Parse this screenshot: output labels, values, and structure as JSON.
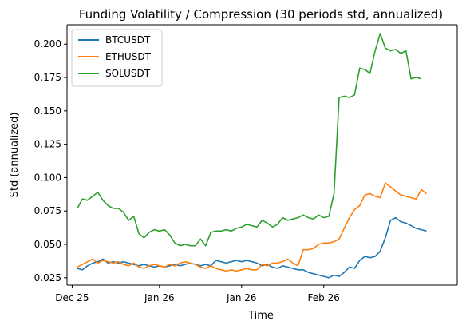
{
  "chart_data": {
    "type": "line",
    "title": "Funding Volatility / Compression (30 periods std, annualized)",
    "xlabel": "Time",
    "ylabel": "Std (annualized)",
    "xlim": [
      "2025-12-24",
      "2026-03-10"
    ],
    "ylim": [
      0.0195,
      0.2145
    ],
    "x_ticks": [
      {
        "date": "2025-12-25",
        "label": "Dec 25"
      },
      {
        "date": "2026-01-11",
        "label": "Jan 26"
      },
      {
        "date": "2026-01-27",
        "label": "Jan 26"
      },
      {
        "date": "2026-02-12",
        "label": "Feb 26"
      }
    ],
    "y_ticks": [
      {
        "value": 0.025,
        "label": "0.025"
      },
      {
        "value": 0.05,
        "label": "0.050"
      },
      {
        "value": 0.075,
        "label": "0.075"
      },
      {
        "value": 0.1,
        "label": "0.100"
      },
      {
        "value": 0.125,
        "label": "0.125"
      },
      {
        "value": 0.15,
        "label": "0.150"
      },
      {
        "value": 0.175,
        "label": "0.175"
      },
      {
        "value": 0.2,
        "label": "0.200"
      }
    ],
    "grid": false,
    "legend_position": "top-left",
    "series": [
      {
        "name": "BTCUSDT",
        "color": "#1f77b4",
        "points": [
          [
            "2025-12-26",
            0.032
          ],
          [
            "2025-12-27",
            0.031
          ],
          [
            "2025-12-28",
            0.034
          ],
          [
            "2025-12-29",
            0.036
          ],
          [
            "2025-12-30",
            0.037
          ],
          [
            "2025-12-31",
            0.039
          ],
          [
            "2026-01-01",
            0.036
          ],
          [
            "2026-01-02",
            0.037
          ],
          [
            "2026-01-03",
            0.036
          ],
          [
            "2026-01-04",
            0.037
          ],
          [
            "2026-01-05",
            0.036
          ],
          [
            "2026-01-06",
            0.035
          ],
          [
            "2026-01-07",
            0.034
          ],
          [
            "2026-01-08",
            0.035
          ],
          [
            "2026-01-09",
            0.034
          ],
          [
            "2026-01-10",
            0.033
          ],
          [
            "2026-01-11",
            0.034
          ],
          [
            "2026-01-12",
            0.033
          ],
          [
            "2026-01-13",
            0.034
          ],
          [
            "2026-01-14",
            0.035
          ],
          [
            "2026-01-15",
            0.034
          ],
          [
            "2026-01-16",
            0.035
          ],
          [
            "2026-01-17",
            0.036
          ],
          [
            "2026-01-18",
            0.035
          ],
          [
            "2026-01-19",
            0.034
          ],
          [
            "2026-01-20",
            0.035
          ],
          [
            "2026-01-21",
            0.034
          ],
          [
            "2026-01-22",
            0.038
          ],
          [
            "2026-01-23",
            0.037
          ],
          [
            "2026-01-24",
            0.036
          ],
          [
            "2026-01-25",
            0.037
          ],
          [
            "2026-01-26",
            0.038
          ],
          [
            "2026-01-27",
            0.037
          ],
          [
            "2026-01-28",
            0.038
          ],
          [
            "2026-01-29",
            0.037
          ],
          [
            "2026-01-30",
            0.036
          ],
          [
            "2026-01-31",
            0.034
          ],
          [
            "2026-02-01",
            0.035
          ],
          [
            "2026-02-02",
            0.033
          ],
          [
            "2026-02-03",
            0.032
          ],
          [
            "2026-02-04",
            0.034
          ],
          [
            "2026-02-05",
            0.033
          ],
          [
            "2026-02-06",
            0.032
          ],
          [
            "2026-02-07",
            0.031
          ],
          [
            "2026-02-08",
            0.031
          ],
          [
            "2026-02-09",
            0.029
          ],
          [
            "2026-02-10",
            0.028
          ],
          [
            "2026-02-11",
            0.027
          ],
          [
            "2026-02-12",
            0.026
          ],
          [
            "2026-02-13",
            0.025
          ],
          [
            "2026-02-14",
            0.027
          ],
          [
            "2026-02-15",
            0.026
          ],
          [
            "2026-02-16",
            0.029
          ],
          [
            "2026-02-17",
            0.033
          ],
          [
            "2026-02-18",
            0.032
          ],
          [
            "2026-02-19",
            0.038
          ],
          [
            "2026-02-20",
            0.041
          ],
          [
            "2026-02-21",
            0.04
          ],
          [
            "2026-02-22",
            0.041
          ],
          [
            "2026-02-23",
            0.045
          ],
          [
            "2026-02-24",
            0.055
          ],
          [
            "2026-02-25",
            0.068
          ],
          [
            "2026-02-26",
            0.07
          ],
          [
            "2026-02-27",
            0.067
          ],
          [
            "2026-02-28",
            0.066
          ],
          [
            "2026-03-01",
            0.064
          ],
          [
            "2026-03-02",
            0.062
          ],
          [
            "2026-03-03",
            0.061
          ],
          [
            "2026-03-04",
            0.06
          ]
        ]
      },
      {
        "name": "ETHUSDT",
        "color": "#ff7f0e",
        "points": [
          [
            "2025-12-26",
            0.033
          ],
          [
            "2025-12-27",
            0.035
          ],
          [
            "2025-12-28",
            0.037
          ],
          [
            "2025-12-29",
            0.039
          ],
          [
            "2025-12-30",
            0.036
          ],
          [
            "2025-12-31",
            0.038
          ],
          [
            "2026-01-01",
            0.037
          ],
          [
            "2026-01-02",
            0.036
          ],
          [
            "2026-01-03",
            0.037
          ],
          [
            "2026-01-04",
            0.035
          ],
          [
            "2026-01-05",
            0.034
          ],
          [
            "2026-01-06",
            0.036
          ],
          [
            "2026-01-07",
            0.033
          ],
          [
            "2026-01-08",
            0.032
          ],
          [
            "2026-01-09",
            0.034
          ],
          [
            "2026-01-10",
            0.035
          ],
          [
            "2026-01-11",
            0.034
          ],
          [
            "2026-01-12",
            0.033
          ],
          [
            "2026-01-13",
            0.035
          ],
          [
            "2026-01-14",
            0.034
          ],
          [
            "2026-01-15",
            0.036
          ],
          [
            "2026-01-16",
            0.037
          ],
          [
            "2026-01-17",
            0.036
          ],
          [
            "2026-01-18",
            0.035
          ],
          [
            "2026-01-19",
            0.033
          ],
          [
            "2026-01-20",
            0.032
          ],
          [
            "2026-01-21",
            0.034
          ],
          [
            "2026-01-22",
            0.032
          ],
          [
            "2026-01-23",
            0.031
          ],
          [
            "2026-01-24",
            0.03
          ],
          [
            "2026-01-25",
            0.031
          ],
          [
            "2026-01-26",
            0.03
          ],
          [
            "2026-01-27",
            0.031
          ],
          [
            "2026-01-28",
            0.032
          ],
          [
            "2026-01-29",
            0.031
          ],
          [
            "2026-01-30",
            0.031
          ],
          [
            "2026-01-31",
            0.035
          ],
          [
            "2026-02-01",
            0.034
          ],
          [
            "2026-02-02",
            0.036
          ],
          [
            "2026-02-03",
            0.036
          ],
          [
            "2026-02-04",
            0.037
          ],
          [
            "2026-02-05",
            0.039
          ],
          [
            "2026-02-06",
            0.036
          ],
          [
            "2026-02-07",
            0.034
          ],
          [
            "2026-02-08",
            0.046
          ],
          [
            "2026-02-09",
            0.046
          ],
          [
            "2026-02-10",
            0.047
          ],
          [
            "2026-02-11",
            0.05
          ],
          [
            "2026-02-12",
            0.051
          ],
          [
            "2026-02-13",
            0.051
          ],
          [
            "2026-02-14",
            0.052
          ],
          [
            "2026-02-15",
            0.054
          ],
          [
            "2026-02-16",
            0.062
          ],
          [
            "2026-02-17",
            0.07
          ],
          [
            "2026-02-18",
            0.076
          ],
          [
            "2026-02-19",
            0.079
          ],
          [
            "2026-02-20",
            0.087
          ],
          [
            "2026-02-21",
            0.088
          ],
          [
            "2026-02-22",
            0.086
          ],
          [
            "2026-02-23",
            0.085
          ],
          [
            "2026-02-24",
            0.096
          ],
          [
            "2026-02-25",
            0.093
          ],
          [
            "2026-02-26",
            0.09
          ],
          [
            "2026-02-27",
            0.087
          ],
          [
            "2026-02-28",
            0.086
          ],
          [
            "2026-03-01",
            0.085
          ],
          [
            "2026-03-02",
            0.084
          ],
          [
            "2026-03-03",
            0.091
          ],
          [
            "2026-03-04",
            0.088
          ]
        ]
      },
      {
        "name": "SOLUSDT",
        "color": "#2ca02c",
        "points": [
          [
            "2025-12-26",
            0.077
          ],
          [
            "2025-12-27",
            0.084
          ],
          [
            "2025-12-28",
            0.083
          ],
          [
            "2025-12-29",
            0.086
          ],
          [
            "2025-12-30",
            0.089
          ],
          [
            "2025-12-31",
            0.083
          ],
          [
            "2026-01-01",
            0.079
          ],
          [
            "2026-01-02",
            0.077
          ],
          [
            "2026-01-03",
            0.077
          ],
          [
            "2026-01-04",
            0.074
          ],
          [
            "2026-01-05",
            0.068
          ],
          [
            "2026-01-06",
            0.071
          ],
          [
            "2026-01-07",
            0.058
          ],
          [
            "2026-01-08",
            0.055
          ],
          [
            "2026-01-09",
            0.059
          ],
          [
            "2026-01-10",
            0.061
          ],
          [
            "2026-01-11",
            0.06
          ],
          [
            "2026-01-12",
            0.061
          ],
          [
            "2026-01-13",
            0.057
          ],
          [
            "2026-01-14",
            0.051
          ],
          [
            "2026-01-15",
            0.049
          ],
          [
            "2026-01-16",
            0.05
          ],
          [
            "2026-01-17",
            0.049
          ],
          [
            "2026-01-18",
            0.049
          ],
          [
            "2026-01-19",
            0.054
          ],
          [
            "2026-01-20",
            0.049
          ],
          [
            "2026-01-21",
            0.059
          ],
          [
            "2026-01-22",
            0.06
          ],
          [
            "2026-01-23",
            0.06
          ],
          [
            "2026-01-24",
            0.061
          ],
          [
            "2026-01-25",
            0.06
          ],
          [
            "2026-01-26",
            0.062
          ],
          [
            "2026-01-27",
            0.063
          ],
          [
            "2026-01-28",
            0.065
          ],
          [
            "2026-01-29",
            0.064
          ],
          [
            "2026-01-30",
            0.063
          ],
          [
            "2026-01-31",
            0.068
          ],
          [
            "2026-02-01",
            0.066
          ],
          [
            "2026-02-02",
            0.063
          ],
          [
            "2026-02-03",
            0.065
          ],
          [
            "2026-02-04",
            0.07
          ],
          [
            "2026-02-05",
            0.068
          ],
          [
            "2026-02-06",
            0.069
          ],
          [
            "2026-02-07",
            0.07
          ],
          [
            "2026-02-08",
            0.072
          ],
          [
            "2026-02-09",
            0.07
          ],
          [
            "2026-02-10",
            0.069
          ],
          [
            "2026-02-11",
            0.072
          ],
          [
            "2026-02-12",
            0.07
          ],
          [
            "2026-02-13",
            0.071
          ],
          [
            "2026-02-14",
            0.088
          ],
          [
            "2026-02-15",
            0.16
          ],
          [
            "2026-02-16",
            0.161
          ],
          [
            "2026-02-17",
            0.16
          ],
          [
            "2026-02-18",
            0.162
          ],
          [
            "2026-02-19",
            0.182
          ],
          [
            "2026-02-20",
            0.181
          ],
          [
            "2026-02-21",
            0.178
          ],
          [
            "2026-02-22",
            0.195
          ],
          [
            "2026-02-23",
            0.208
          ],
          [
            "2026-02-24",
            0.197
          ],
          [
            "2026-02-25",
            0.195
          ],
          [
            "2026-02-26",
            0.196
          ],
          [
            "2026-02-27",
            0.193
          ],
          [
            "2026-02-28",
            0.195
          ],
          [
            "2026-03-01",
            0.174
          ],
          [
            "2026-03-02",
            0.175
          ],
          [
            "2026-03-03",
            0.174
          ]
        ]
      }
    ]
  }
}
